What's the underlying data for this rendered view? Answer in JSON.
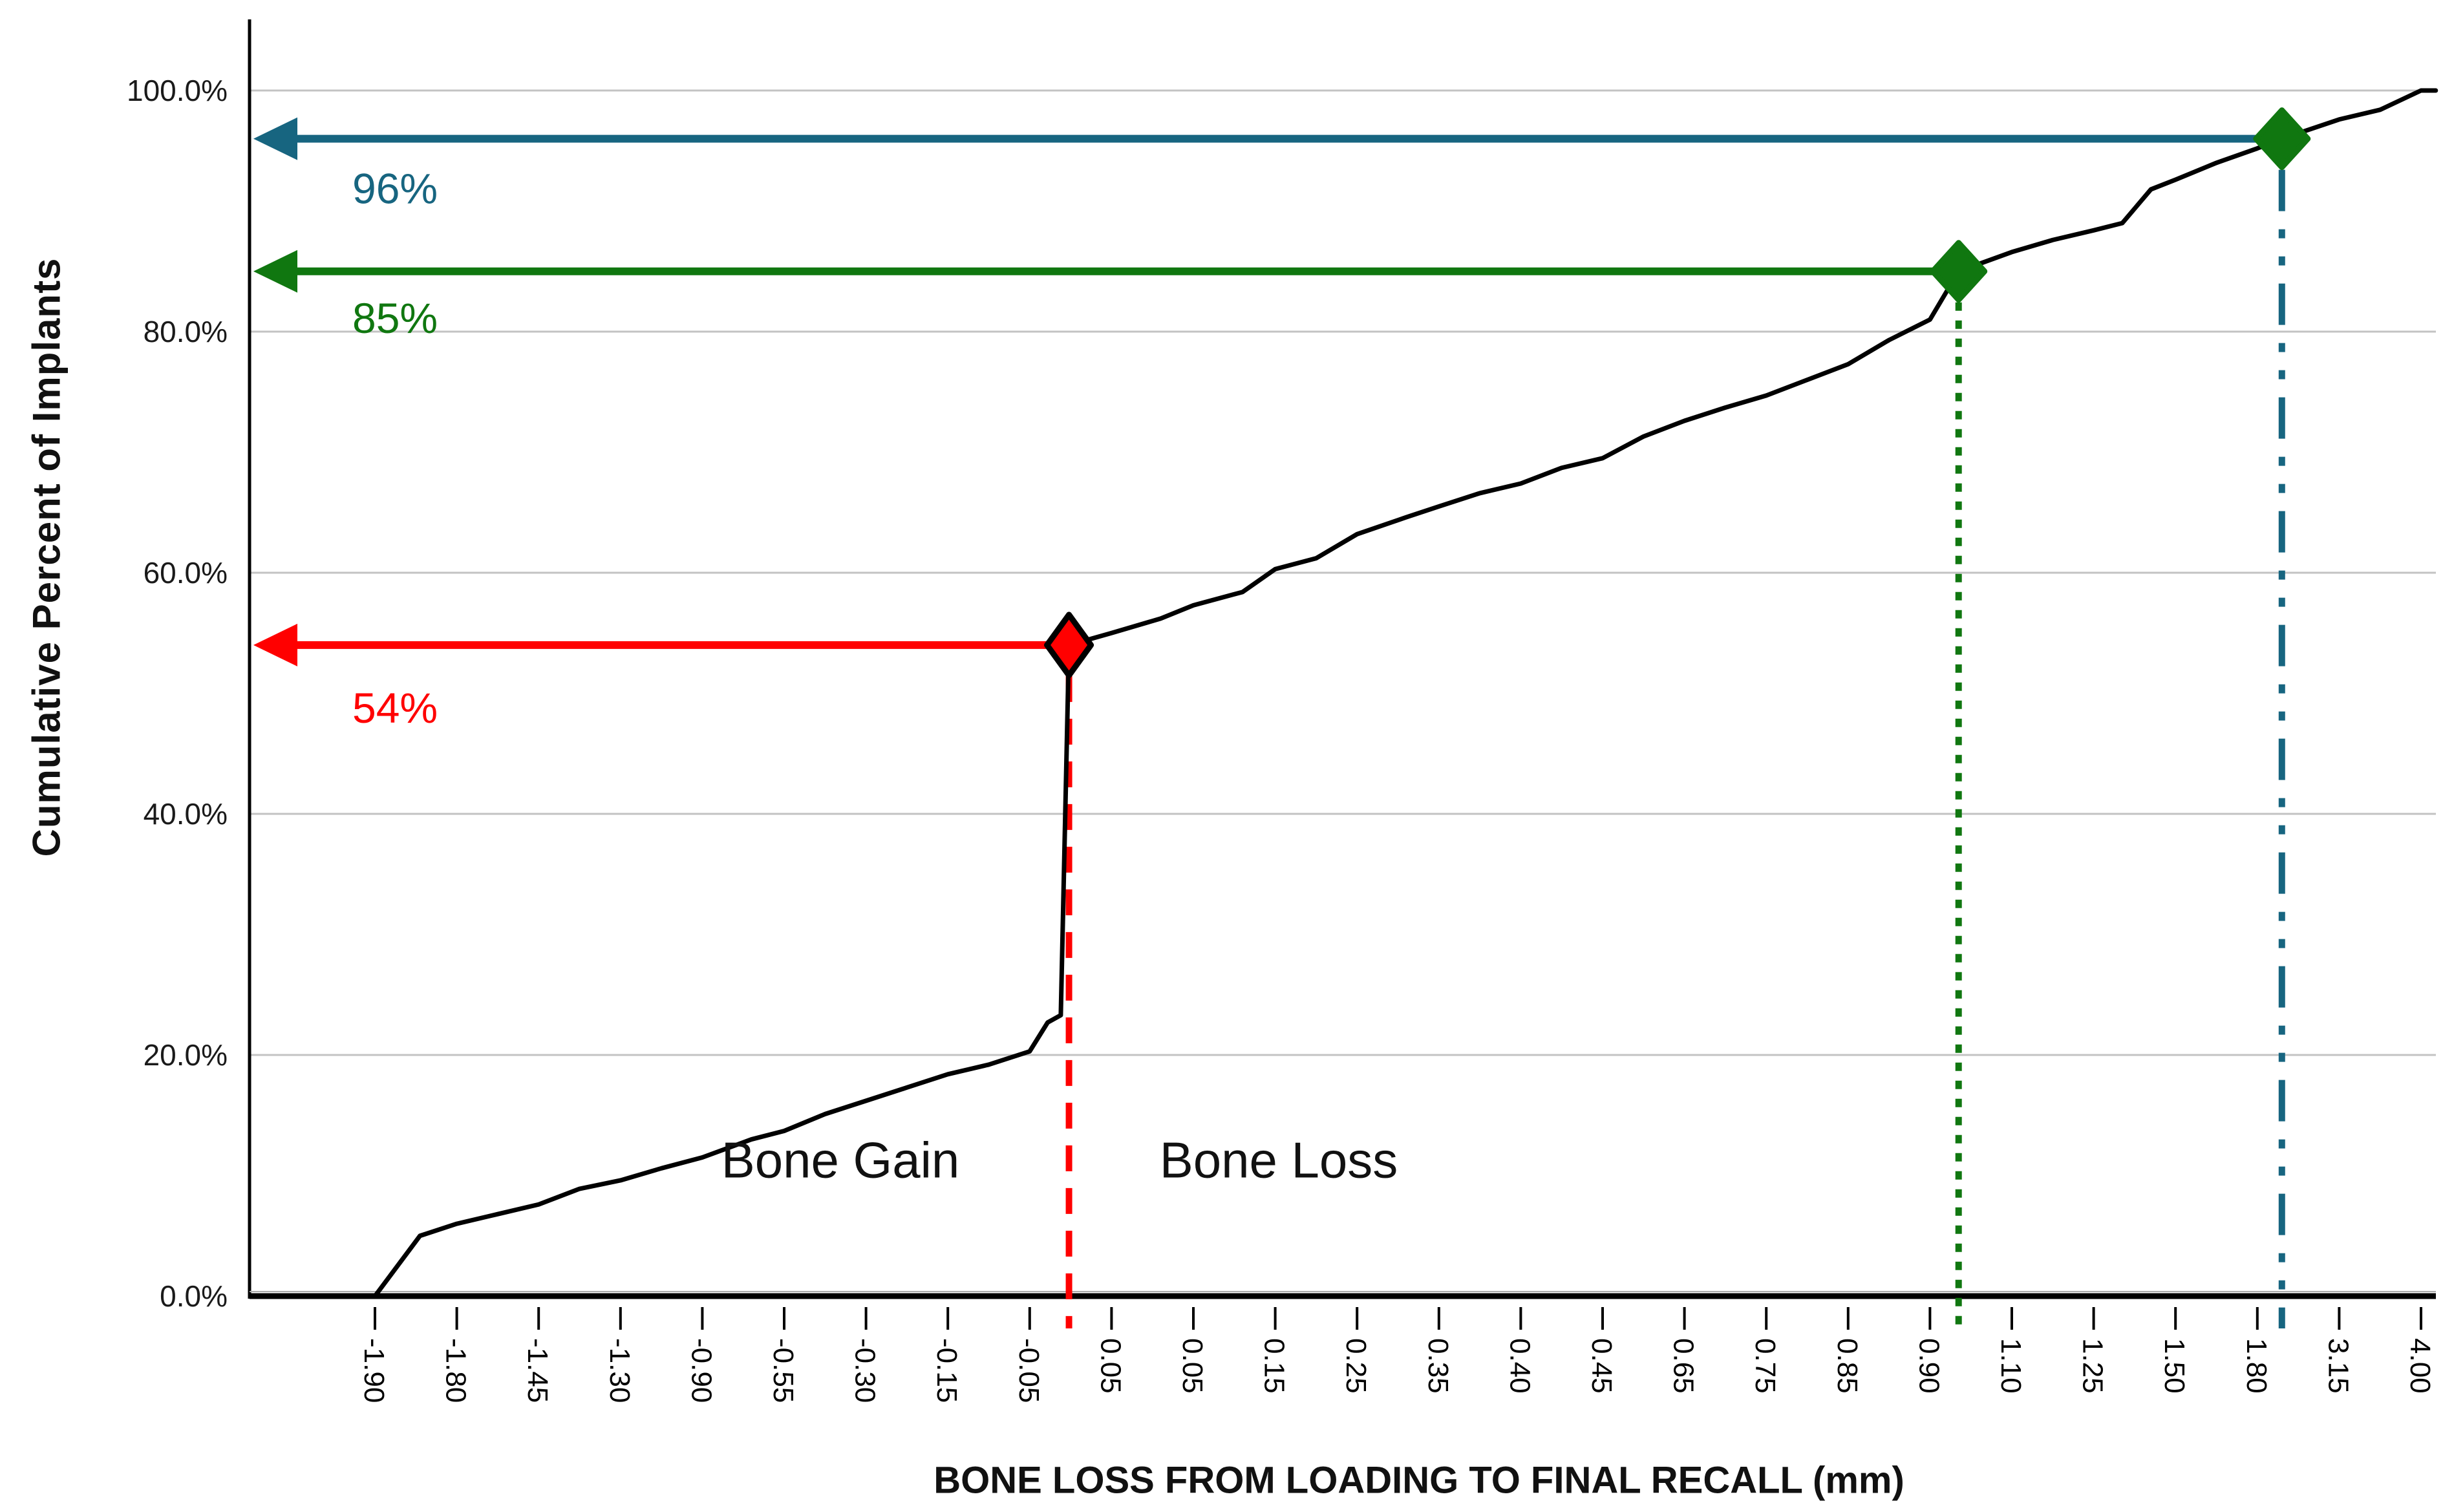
{
  "chart_data": {
    "type": "line",
    "title": "",
    "xlabel": "BONE LOSS FROM LOADING TO FINAL RECALL (mm)",
    "ylabel": "Cumulative Percent of Implants",
    "x_tick_labels": [
      "-1.90",
      "-1.80",
      "-1.45",
      "-1.30",
      "-0.90",
      "-0.55",
      "-0.30",
      "-0.15",
      "-0.05",
      "0.05",
      "0.05",
      "0.15",
      "0.25",
      "0.35",
      "0.40",
      "0.45",
      "0.65",
      "0.75",
      "0.85",
      "0.90",
      "1.10",
      "1.25",
      "1.50",
      "1.80",
      "3.15",
      "4.00"
    ],
    "y_tick_labels": [
      "0.0%",
      "20.0%",
      "40.0%",
      "60.0%",
      "80.0%",
      "100.0%"
    ],
    "y_tick_values": [
      0,
      20,
      40,
      60,
      80,
      100
    ],
    "ylim": [
      0,
      100
    ],
    "grid": "horizontal-gray-lines",
    "legend": "none",
    "colors": {
      "curve": "#000000",
      "grid": "#c3c3c3",
      "axis": "#000000",
      "red": "#ff0000",
      "green": "#107710",
      "teal": "#176580"
    },
    "curve_points_index_pct": [
      [
        0,
        0
      ],
      [
        0.55,
        5
      ],
      [
        1,
        6
      ],
      [
        1.5,
        6.8
      ],
      [
        2,
        7.6
      ],
      [
        2.5,
        8.9
      ],
      [
        3,
        9.6
      ],
      [
        3.5,
        10.6
      ],
      [
        4,
        11.5
      ],
      [
        4.6,
        13
      ],
      [
        5,
        13.7
      ],
      [
        5.5,
        15.1
      ],
      [
        6,
        16.2
      ],
      [
        6.5,
        17.3
      ],
      [
        7,
        18.4
      ],
      [
        7.5,
        19.2
      ],
      [
        8,
        20.3
      ],
      [
        8.22,
        22.7
      ],
      [
        8.38,
        23.3
      ],
      [
        8.48,
        54
      ],
      [
        9,
        55
      ],
      [
        9.6,
        56.2
      ],
      [
        10,
        57.3
      ],
      [
        10.6,
        58.4
      ],
      [
        11,
        60.3
      ],
      [
        11.5,
        61.2
      ],
      [
        12,
        63.2
      ],
      [
        12.6,
        64.6
      ],
      [
        13,
        65.5
      ],
      [
        13.5,
        66.6
      ],
      [
        14,
        67.4
      ],
      [
        14.5,
        68.7
      ],
      [
        15,
        69.5
      ],
      [
        15.5,
        71.3
      ],
      [
        16,
        72.6
      ],
      [
        16.5,
        73.7
      ],
      [
        17,
        74.7
      ],
      [
        17.5,
        76
      ],
      [
        18,
        77.3
      ],
      [
        18.5,
        79.3
      ],
      [
        19,
        81
      ],
      [
        19.35,
        85
      ],
      [
        20,
        86.6
      ],
      [
        20.5,
        87.6
      ],
      [
        21,
        88.4
      ],
      [
        21.35,
        89
      ],
      [
        21.7,
        91.8
      ],
      [
        22,
        92.6
      ],
      [
        22.5,
        94
      ],
      [
        23,
        95.2
      ],
      [
        23.3,
        96
      ],
      [
        24,
        97.6
      ],
      [
        24.5,
        98.4
      ],
      [
        25,
        100
      ],
      [
        25.18,
        100
      ]
    ],
    "annotations": [
      {
        "name": "median-0mm",
        "label": "54%",
        "pct": 54,
        "x_index": 8.48,
        "marker_fill": "#ff0000",
        "marker_stroke": "#000000",
        "arrow_color": "#ff0000",
        "label_color": "#ff0000",
        "line_color": "#ff0000",
        "line_style": "dashed",
        "label_dy": 120
      },
      {
        "name": "bone-loss-1mm",
        "label": "85%",
        "pct": 85,
        "x_index": 19.35,
        "marker_fill": "#107710",
        "marker_stroke": "#107710",
        "arrow_color": "#107710",
        "label_color": "#107710",
        "line_color": "#107710",
        "line_style": "dotted",
        "label_dy": 95
      },
      {
        "name": "bone-loss-2mm",
        "label": "96%",
        "pct": 96,
        "x_index": 23.3,
        "marker_fill": "#107710",
        "marker_stroke": "#107710",
        "arrow_color": "#176580",
        "label_color": "#176580",
        "line_color": "#176580",
        "line_style": "dashdotdot",
        "label_dy": 100
      }
    ],
    "region_labels": {
      "gain": "Bone Gain",
      "loss": "Bone Loss"
    }
  }
}
